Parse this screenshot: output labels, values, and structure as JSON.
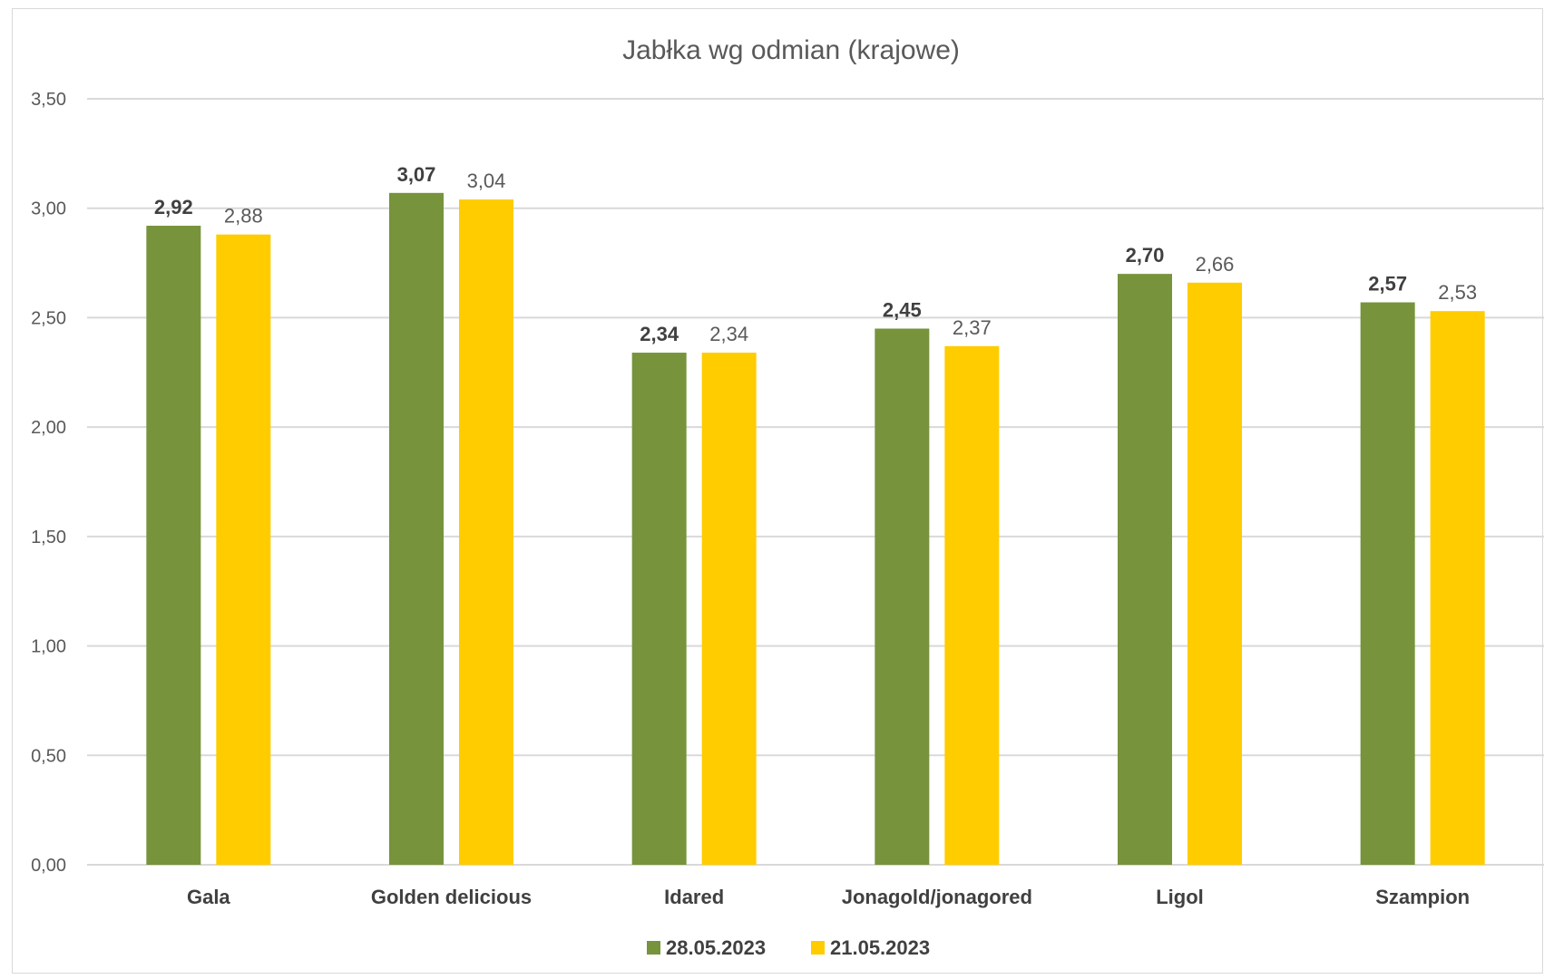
{
  "chart_data": {
    "type": "bar",
    "title": "Jabłka wg odmian (krajowe)",
    "categories": [
      "Gala",
      "Golden delicious",
      "Idared",
      "Jonagold/jonagored",
      "Ligol",
      "Szampion"
    ],
    "series": [
      {
        "name": "28.05.2023",
        "color": "#77933c",
        "values": [
          2.92,
          3.07,
          2.34,
          2.45,
          2.7,
          2.57
        ],
        "labels": [
          "2,92",
          "3,07",
          "2,34",
          "2,45",
          "2,70",
          "2,57"
        ]
      },
      {
        "name": "21.05.2023",
        "color": "#ffcc00",
        "values": [
          2.88,
          3.04,
          2.34,
          2.37,
          2.66,
          2.53
        ],
        "labels": [
          "2,88",
          "3,04",
          "2,34",
          "2,37",
          "2,66",
          "2,53"
        ]
      }
    ],
    "ylim": [
      0,
      3.5
    ],
    "yticks": [
      "0,00",
      "0,50",
      "1,00",
      "1,50",
      "2,00",
      "2,50",
      "3,00",
      "3,50"
    ],
    "grid": true,
    "legend_position": "bottom"
  }
}
